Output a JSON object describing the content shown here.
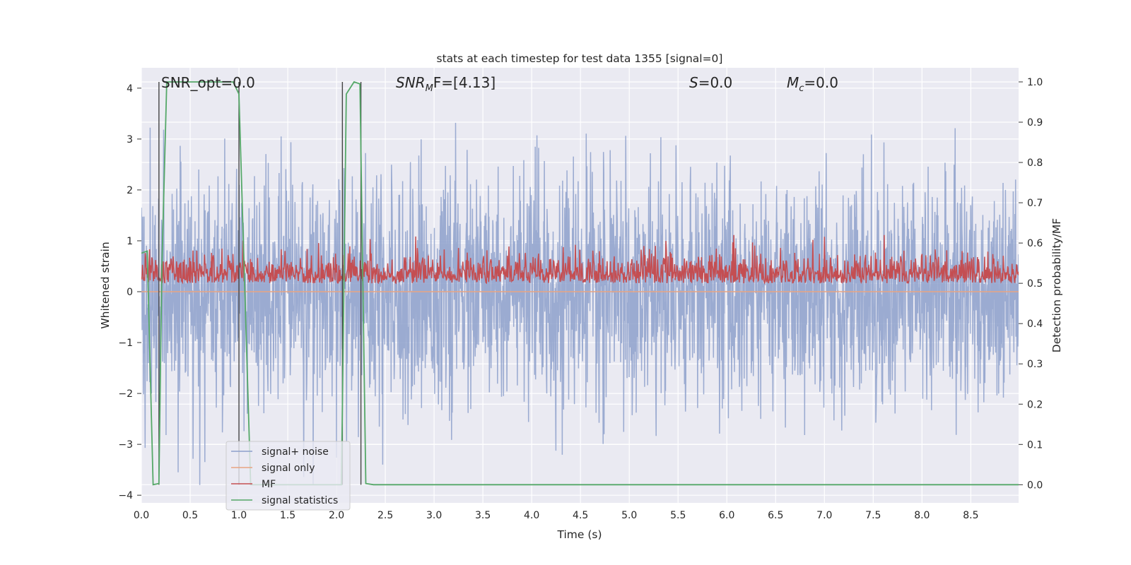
{
  "chart_data": {
    "type": "line",
    "title": "stats at each timestep for test data 1355 [signal=0]",
    "xlabel": "Time (s)",
    "ylabel": "Whitened strain",
    "ylabel_right": "Detection probability/MF",
    "xlim": [
      0,
      8.99
    ],
    "ylim": [
      -4.15,
      4.4
    ],
    "ylim_right": [
      -0.045,
      1.035
    ],
    "x_ticks": [
      "0.0",
      "0.5",
      "1.0",
      "1.5",
      "2.0",
      "2.5",
      "3.0",
      "3.5",
      "4.0",
      "4.5",
      "5.0",
      "5.5",
      "6.0",
      "6.5",
      "7.0",
      "7.5",
      "8.0",
      "8.5"
    ],
    "y_ticks": [
      "4",
      "3",
      "2",
      "1",
      "0",
      "−1",
      "−2",
      "−3",
      "−4"
    ],
    "y_ticks_right": [
      "1.0",
      "0.9",
      "0.8",
      "0.7",
      "0.6",
      "0.5",
      "0.4",
      "0.3",
      "0.2",
      "0.1",
      "0.0"
    ],
    "grid": true,
    "background": "#eaeaf2",
    "legend_position": "lower-left",
    "annotations": [
      {
        "text": "SNR_opt=0.0"
      },
      {
        "base": "SNR",
        "sub": "M",
        "rest": "F=[4.13]"
      },
      {
        "base": "S",
        "sub": "",
        "rest": "=0.0"
      },
      {
        "base": "M",
        "sub": "c",
        "rest": "=0.0"
      }
    ],
    "series": [
      {
        "name": "signal+ noise",
        "axis": "left",
        "color": "#8da0cb",
        "description": "whitened noisy strain, roughly within -3.8 to 4.1"
      },
      {
        "name": "signal only",
        "axis": "left",
        "color": "#e8a382",
        "values": [
          0
        ]
      },
      {
        "name": "MF",
        "axis": "right",
        "color": "#c44e52",
        "description": "matched filter output, roughly 0.49 to 0.62"
      },
      {
        "name": "signal statistics",
        "axis": "right",
        "color": "#55a868",
        "x": [
          0,
          0.06,
          0.12,
          0.18,
          0.21,
          0.26,
          0.42,
          0.58,
          0.74,
          0.94,
          1.0,
          1.12,
          1.28,
          2.05,
          2.1,
          2.18,
          2.24,
          2.3,
          2.38,
          3.0,
          4.0,
          5.0,
          6.0,
          7.0,
          8.0,
          8.99
        ],
        "values": [
          0.575,
          0.58,
          0.0,
          0.003,
          0.54,
          1.0,
          1.0,
          1.0,
          1.0,
          1.0,
          0.97,
          0.0,
          0.0,
          0.0,
          0.97,
          1.0,
          0.995,
          0.003,
          0.0,
          0.0,
          0.0,
          0.0,
          0.0,
          0.0,
          0.0,
          0.0
        ]
      }
    ],
    "vertical_lines_x": [
      0.18,
      1.0,
      2.06,
      2.25
    ]
  }
}
